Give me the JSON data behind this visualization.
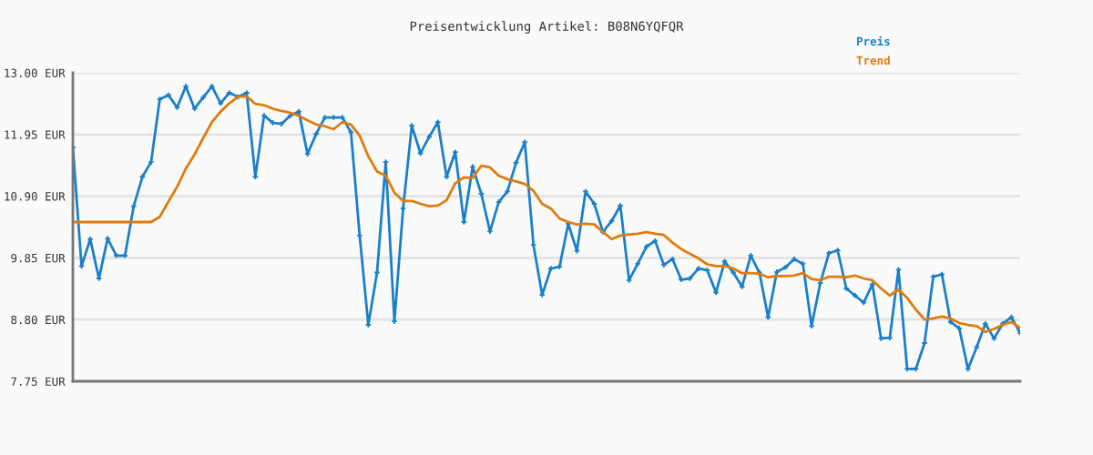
{
  "chart_data": {
    "type": "line",
    "title": "Preisentwicklung Artikel: B08N6YQFQR",
    "categories": [
      null,
      null,
      null,
      null,
      null,
      null,
      null,
      null,
      null,
      null,
      null,
      null,
      null,
      null,
      null,
      null,
      null,
      null,
      null,
      null,
      null,
      null,
      null,
      null,
      null,
      null,
      null,
      null,
      null,
      null,
      null,
      null,
      null,
      null,
      null,
      null,
      null,
      null,
      null,
      null,
      null,
      null,
      null,
      null,
      null,
      null,
      null,
      null,
      null,
      null,
      null,
      null,
      null,
      null,
      null,
      null,
      null,
      null,
      null,
      null,
      null,
      null,
      null,
      null,
      null,
      null,
      null,
      null,
      null,
      null,
      null,
      null,
      null,
      null,
      null,
      null,
      null,
      null,
      null,
      null,
      null,
      null,
      null,
      null,
      null,
      null,
      null,
      null,
      null,
      null,
      null,
      null,
      null,
      null,
      null,
      null,
      null,
      null,
      null,
      null,
      null,
      null,
      null,
      null,
      null,
      null,
      null,
      null,
      null,
      null
    ],
    "series": [
      {
        "name": "Preis",
        "color": "#1a7fcb",
        "marker": "cross",
        "values": [
          11.73,
          9.71,
          10.17,
          9.5,
          10.18,
          9.89,
          9.89,
          10.73,
          11.23,
          11.48,
          12.55,
          12.62,
          12.41,
          12.77,
          12.39,
          12.58,
          12.77,
          12.48,
          12.66,
          12.59,
          12.66,
          11.23,
          12.27,
          12.15,
          12.13,
          12.27,
          12.34,
          11.62,
          11.96,
          12.24,
          12.24,
          12.24,
          11.99,
          10.23,
          8.71,
          9.6,
          11.48,
          8.77,
          10.69,
          12.1,
          11.63,
          11.91,
          12.16,
          11.23,
          11.65,
          10.46,
          11.4,
          10.94,
          10.3,
          10.8,
          10.98,
          11.47,
          11.82,
          10.07,
          9.22,
          9.67,
          9.7,
          10.43,
          9.97,
          10.98,
          10.77,
          10.29,
          10.48,
          10.74,
          9.47,
          9.75,
          10.04,
          10.14,
          9.73,
          9.83,
          9.48,
          9.5,
          9.67,
          9.64,
          9.26,
          9.79,
          9.6,
          9.36,
          9.89,
          9.6,
          8.84,
          9.61,
          9.69,
          9.83,
          9.75,
          8.69,
          9.42,
          9.93,
          9.98,
          9.33,
          9.21,
          9.09,
          9.4,
          8.48,
          8.49,
          9.65,
          7.96,
          7.96,
          8.4,
          9.53,
          9.57,
          8.76,
          8.65,
          7.96,
          8.33,
          8.73,
          8.48,
          8.73,
          8.84,
          8.57
        ]
      },
      {
        "name": "Trend",
        "color": "#e07b0c",
        "marker": "none",
        "values": [
          10.46,
          10.46,
          10.46,
          10.46,
          10.46,
          10.46,
          10.46,
          10.46,
          10.46,
          10.46,
          10.55,
          10.81,
          11.06,
          11.37,
          11.61,
          11.89,
          12.16,
          12.34,
          12.48,
          12.59,
          12.6,
          12.47,
          12.45,
          12.39,
          12.35,
          12.32,
          12.27,
          12.19,
          12.12,
          12.09,
          12.04,
          12.16,
          12.12,
          11.93,
          11.58,
          11.32,
          11.25,
          10.96,
          10.82,
          10.82,
          10.77,
          10.73,
          10.74,
          10.83,
          11.12,
          11.22,
          11.21,
          11.42,
          11.39,
          11.25,
          11.19,
          11.15,
          11.11,
          10.99,
          10.77,
          10.69,
          10.52,
          10.46,
          10.42,
          10.43,
          10.42,
          10.29,
          10.17,
          10.23,
          10.25,
          10.26,
          10.29,
          10.26,
          10.24,
          10.11,
          10.0,
          9.92,
          9.84,
          9.74,
          9.71,
          9.71,
          9.67,
          9.59,
          9.59,
          9.58,
          9.52,
          9.54,
          9.54,
          9.55,
          9.59,
          9.49,
          9.47,
          9.53,
          9.53,
          9.52,
          9.55,
          9.5,
          9.47,
          9.33,
          9.21,
          9.31,
          9.17,
          8.97,
          8.8,
          8.82,
          8.85,
          8.82,
          8.74,
          8.71,
          8.69,
          8.59,
          8.64,
          8.71,
          8.76,
          8.66
        ]
      }
    ],
    "ylim": [
      7.75,
      13.0
    ],
    "yticks": [
      {
        "value": 7.75,
        "label": "7.75 EUR"
      },
      {
        "value": 8.8,
        "label": "8.80 EUR"
      },
      {
        "value": 9.85,
        "label": "9.85 EUR"
      },
      {
        "value": 10.9,
        "label": "10.90 EUR"
      },
      {
        "value": 11.95,
        "label": "11.95 EUR"
      },
      {
        "value": 13.0,
        "label": "13.00 EUR"
      }
    ],
    "grid": "y",
    "legend": "top right",
    "line_style": "solid"
  }
}
